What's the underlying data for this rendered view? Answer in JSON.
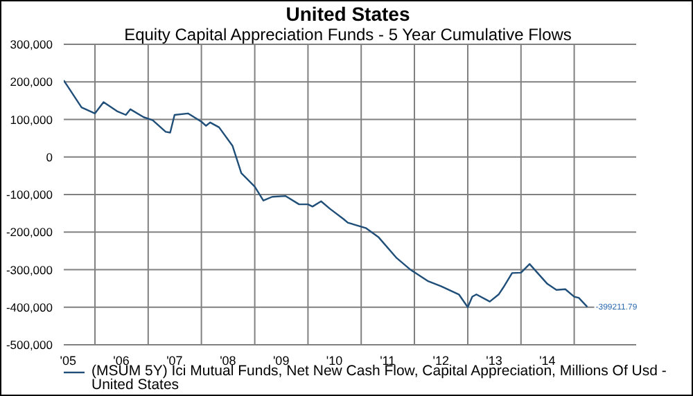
{
  "chart_data": {
    "type": "line",
    "title": "United States",
    "subtitle": "Equity Capital Appreciation Funds - 5 Year Cumulative Flows",
    "x": [
      "2005-06",
      "2005-10",
      "2006-01",
      "2006-03",
      "2006-06",
      "2006-08",
      "2006-09",
      "2006-12",
      "2007-02",
      "2007-05",
      "2007-06",
      "2007-07",
      "2007-10",
      "2008-01",
      "2008-02",
      "2008-03",
      "2008-05",
      "2008-08",
      "2008-10",
      "2009-01",
      "2009-03",
      "2009-05",
      "2009-08",
      "2009-11",
      "2010-01",
      "2010-02",
      "2010-04",
      "2010-06",
      "2010-09",
      "2010-10",
      "2011-02",
      "2011-05",
      "2011-09",
      "2011-12",
      "2012-04",
      "2012-07",
      "2012-11",
      "2013-01",
      "2013-02",
      "2013-03",
      "2013-06",
      "2013-08",
      "2013-09",
      "2013-11",
      "2014-01",
      "2014-03",
      "2014-07",
      "2014-09",
      "2014-11",
      "2015-01",
      "2015-02",
      "2015-04"
    ],
    "series": [
      {
        "name": "(MSUM 5Y) Ici Mutual Funds, Net New Cash Flow, Capital Appreciation, Millions Of Usd - United States",
        "color": "#1f4e79",
        "values": [
          204000,
          132000,
          116000,
          146000,
          122000,
          112000,
          127000,
          106000,
          98000,
          67000,
          65000,
          112000,
          116000,
          94000,
          83000,
          92000,
          79000,
          30000,
          -43000,
          -79000,
          -116000,
          -106000,
          -104000,
          -126000,
          -126000,
          -132000,
          -118000,
          -138000,
          -165000,
          -175000,
          -189000,
          -214000,
          -269000,
          -299000,
          -330000,
          -344000,
          -366000,
          -400000,
          -372000,
          -366000,
          -385000,
          -366000,
          -348000,
          -309000,
          -308000,
          -285000,
          -338000,
          -354000,
          -352000,
          -372000,
          -375000,
          -399211.79
        ],
        "value_labels": [
          null,
          null,
          null,
          null,
          null,
          null,
          null,
          null,
          null,
          null,
          null,
          null,
          null,
          null,
          null,
          null,
          null,
          null,
          null,
          null,
          null,
          null,
          null,
          null,
          null,
          null,
          null,
          null,
          null,
          null,
          null,
          null,
          null,
          null,
          null,
          null,
          null,
          null,
          null,
          null,
          null,
          null,
          null,
          null,
          null,
          null,
          null,
          null,
          null,
          null,
          null,
          "-399211.79"
        ]
      }
    ],
    "xlim": [
      "2005-06",
      "2016-03"
    ],
    "xticks": [
      {
        "value": "2005-07",
        "label": "'05"
      },
      {
        "value": "2006-01",
        "label": null
      },
      {
        "value": "2006-07",
        "label": "'06"
      },
      {
        "value": "2007-01",
        "label": null
      },
      {
        "value": "2007-07",
        "label": "'07"
      },
      {
        "value": "2008-01",
        "label": null
      },
      {
        "value": "2008-07",
        "label": "'08"
      },
      {
        "value": "2009-01",
        "label": null
      },
      {
        "value": "2009-07",
        "label": "'09"
      },
      {
        "value": "2010-01",
        "label": null
      },
      {
        "value": "2010-07",
        "label": "'10"
      },
      {
        "value": "2011-01",
        "label": null
      },
      {
        "value": "2011-07",
        "label": "'11"
      },
      {
        "value": "2012-01",
        "label": null
      },
      {
        "value": "2012-07",
        "label": "'12"
      },
      {
        "value": "2013-01",
        "label": null
      },
      {
        "value": "2013-07",
        "label": "'13"
      },
      {
        "value": "2014-01",
        "label": null
      },
      {
        "value": "2014-07",
        "label": "'14"
      },
      {
        "value": "2015-01",
        "label": null
      }
    ],
    "ylim": [
      -500000,
      300000
    ],
    "yticks": [
      {
        "value": -500000,
        "label": "-500,000"
      },
      {
        "value": -400000,
        "label": "-400,000"
      },
      {
        "value": -300000,
        "label": "-300,000"
      },
      {
        "value": -200000,
        "label": "-200,000"
      },
      {
        "value": -100000,
        "label": "-100,000"
      },
      0,
      {
        "value": 100000,
        "label": "100,000"
      },
      {
        "value": 200000,
        "label": "200,000"
      },
      {
        "value": 300000,
        "label": "300,000"
      }
    ],
    "grid": true,
    "legend": "bottom",
    "marker": "none",
    "line_style": "solid"
  }
}
